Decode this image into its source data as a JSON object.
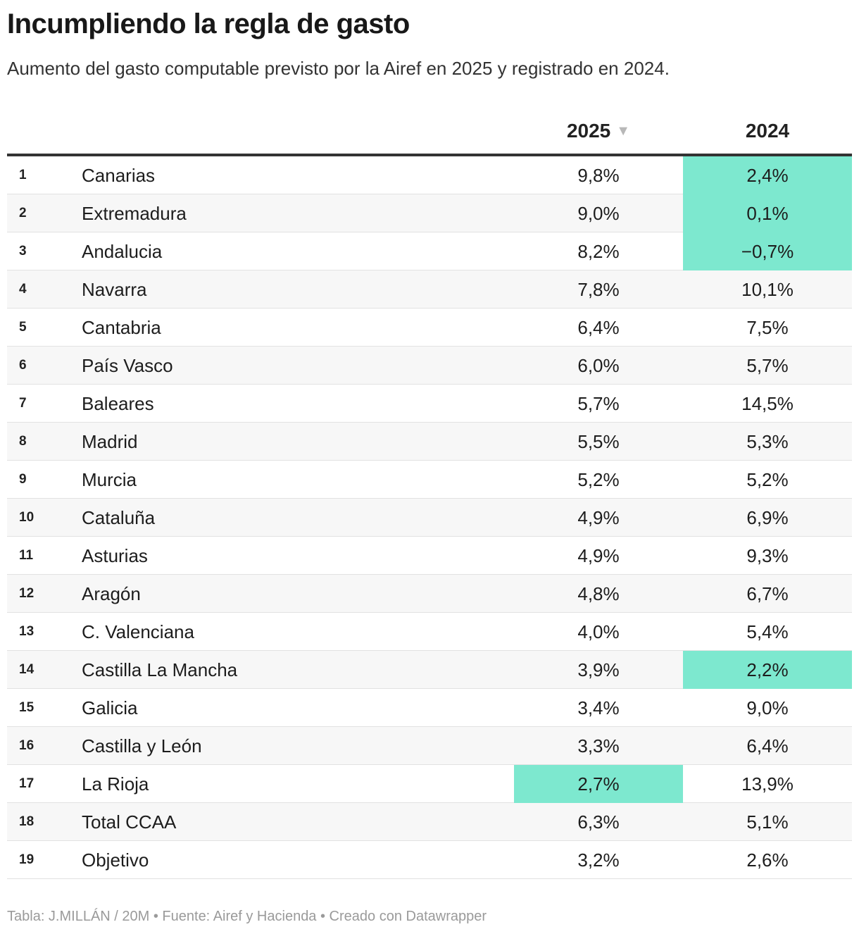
{
  "title": "Incumpliendo la regla de gasto",
  "subtitle": "Aumento del gasto computable previsto por la Airef en 2025 y registrado en 2024.",
  "footer": "Tabla: J.MILLÁN / 20M • Fuente: Airef y Hacienda • Creado con Datawrapper",
  "colors": {
    "highlight": "#7de8cf",
    "row_alt": "#f7f7f7",
    "header_rule": "#333333"
  },
  "chart_data": {
    "type": "table",
    "title": "Incumpliendo la regla de gasto",
    "subtitle": "Aumento del gasto computable previsto por la Airef en 2025 y registrado en 2024.",
    "columns": [
      "",
      "",
      "2025",
      "2024"
    ],
    "sort": {
      "column": "2025",
      "direction": "descending",
      "icon": "sort-down-triangle-icon"
    },
    "rows": [
      {
        "rank": "1",
        "name": "Canarias",
        "v2025": "9,8%",
        "v2024": "2,4%",
        "hl2025": false,
        "hl2024": true
      },
      {
        "rank": "2",
        "name": "Extremadura",
        "v2025": "9,0%",
        "v2024": "0,1%",
        "hl2025": false,
        "hl2024": true
      },
      {
        "rank": "3",
        "name": "Andalucia",
        "v2025": "8,2%",
        "v2024": "−0,7%",
        "hl2025": false,
        "hl2024": true
      },
      {
        "rank": "4",
        "name": "Navarra",
        "v2025": "7,8%",
        "v2024": "10,1%",
        "hl2025": false,
        "hl2024": false
      },
      {
        "rank": "5",
        "name": "Cantabria",
        "v2025": "6,4%",
        "v2024": "7,5%",
        "hl2025": false,
        "hl2024": false
      },
      {
        "rank": "6",
        "name": "País Vasco",
        "v2025": "6,0%",
        "v2024": "5,7%",
        "hl2025": false,
        "hl2024": false
      },
      {
        "rank": "7",
        "name": "Baleares",
        "v2025": "5,7%",
        "v2024": "14,5%",
        "hl2025": false,
        "hl2024": false
      },
      {
        "rank": "8",
        "name": "Madrid",
        "v2025": "5,5%",
        "v2024": "5,3%",
        "hl2025": false,
        "hl2024": false
      },
      {
        "rank": "9",
        "name": "Murcia",
        "v2025": "5,2%",
        "v2024": "5,2%",
        "hl2025": false,
        "hl2024": false
      },
      {
        "rank": "10",
        "name": "Cataluña",
        "v2025": "4,9%",
        "v2024": "6,9%",
        "hl2025": false,
        "hl2024": false
      },
      {
        "rank": "11",
        "name": "Asturias",
        "v2025": "4,9%",
        "v2024": "9,3%",
        "hl2025": false,
        "hl2024": false
      },
      {
        "rank": "12",
        "name": "Aragón",
        "v2025": "4,8%",
        "v2024": "6,7%",
        "hl2025": false,
        "hl2024": false
      },
      {
        "rank": "13",
        "name": "C. Valenciana",
        "v2025": "4,0%",
        "v2024": "5,4%",
        "hl2025": false,
        "hl2024": false
      },
      {
        "rank": "14",
        "name": "Castilla La Mancha",
        "v2025": "3,9%",
        "v2024": "2,2%",
        "hl2025": false,
        "hl2024": true
      },
      {
        "rank": "15",
        "name": "Galicia",
        "v2025": "3,4%",
        "v2024": "9,0%",
        "hl2025": false,
        "hl2024": false
      },
      {
        "rank": "16",
        "name": "Castilla y León",
        "v2025": "3,3%",
        "v2024": "6,4%",
        "hl2025": false,
        "hl2024": false
      },
      {
        "rank": "17",
        "name": "La Rioja",
        "v2025": "2,7%",
        "v2024": "13,9%",
        "hl2025": true,
        "hl2024": false
      },
      {
        "rank": "18",
        "name": "Total CCAA",
        "v2025": "6,3%",
        "v2024": "5,1%",
        "hl2025": false,
        "hl2024": false
      },
      {
        "rank": "19",
        "name": "Objetivo",
        "v2025": "3,2%",
        "v2024": "2,6%",
        "hl2025": false,
        "hl2024": false
      }
    ]
  }
}
